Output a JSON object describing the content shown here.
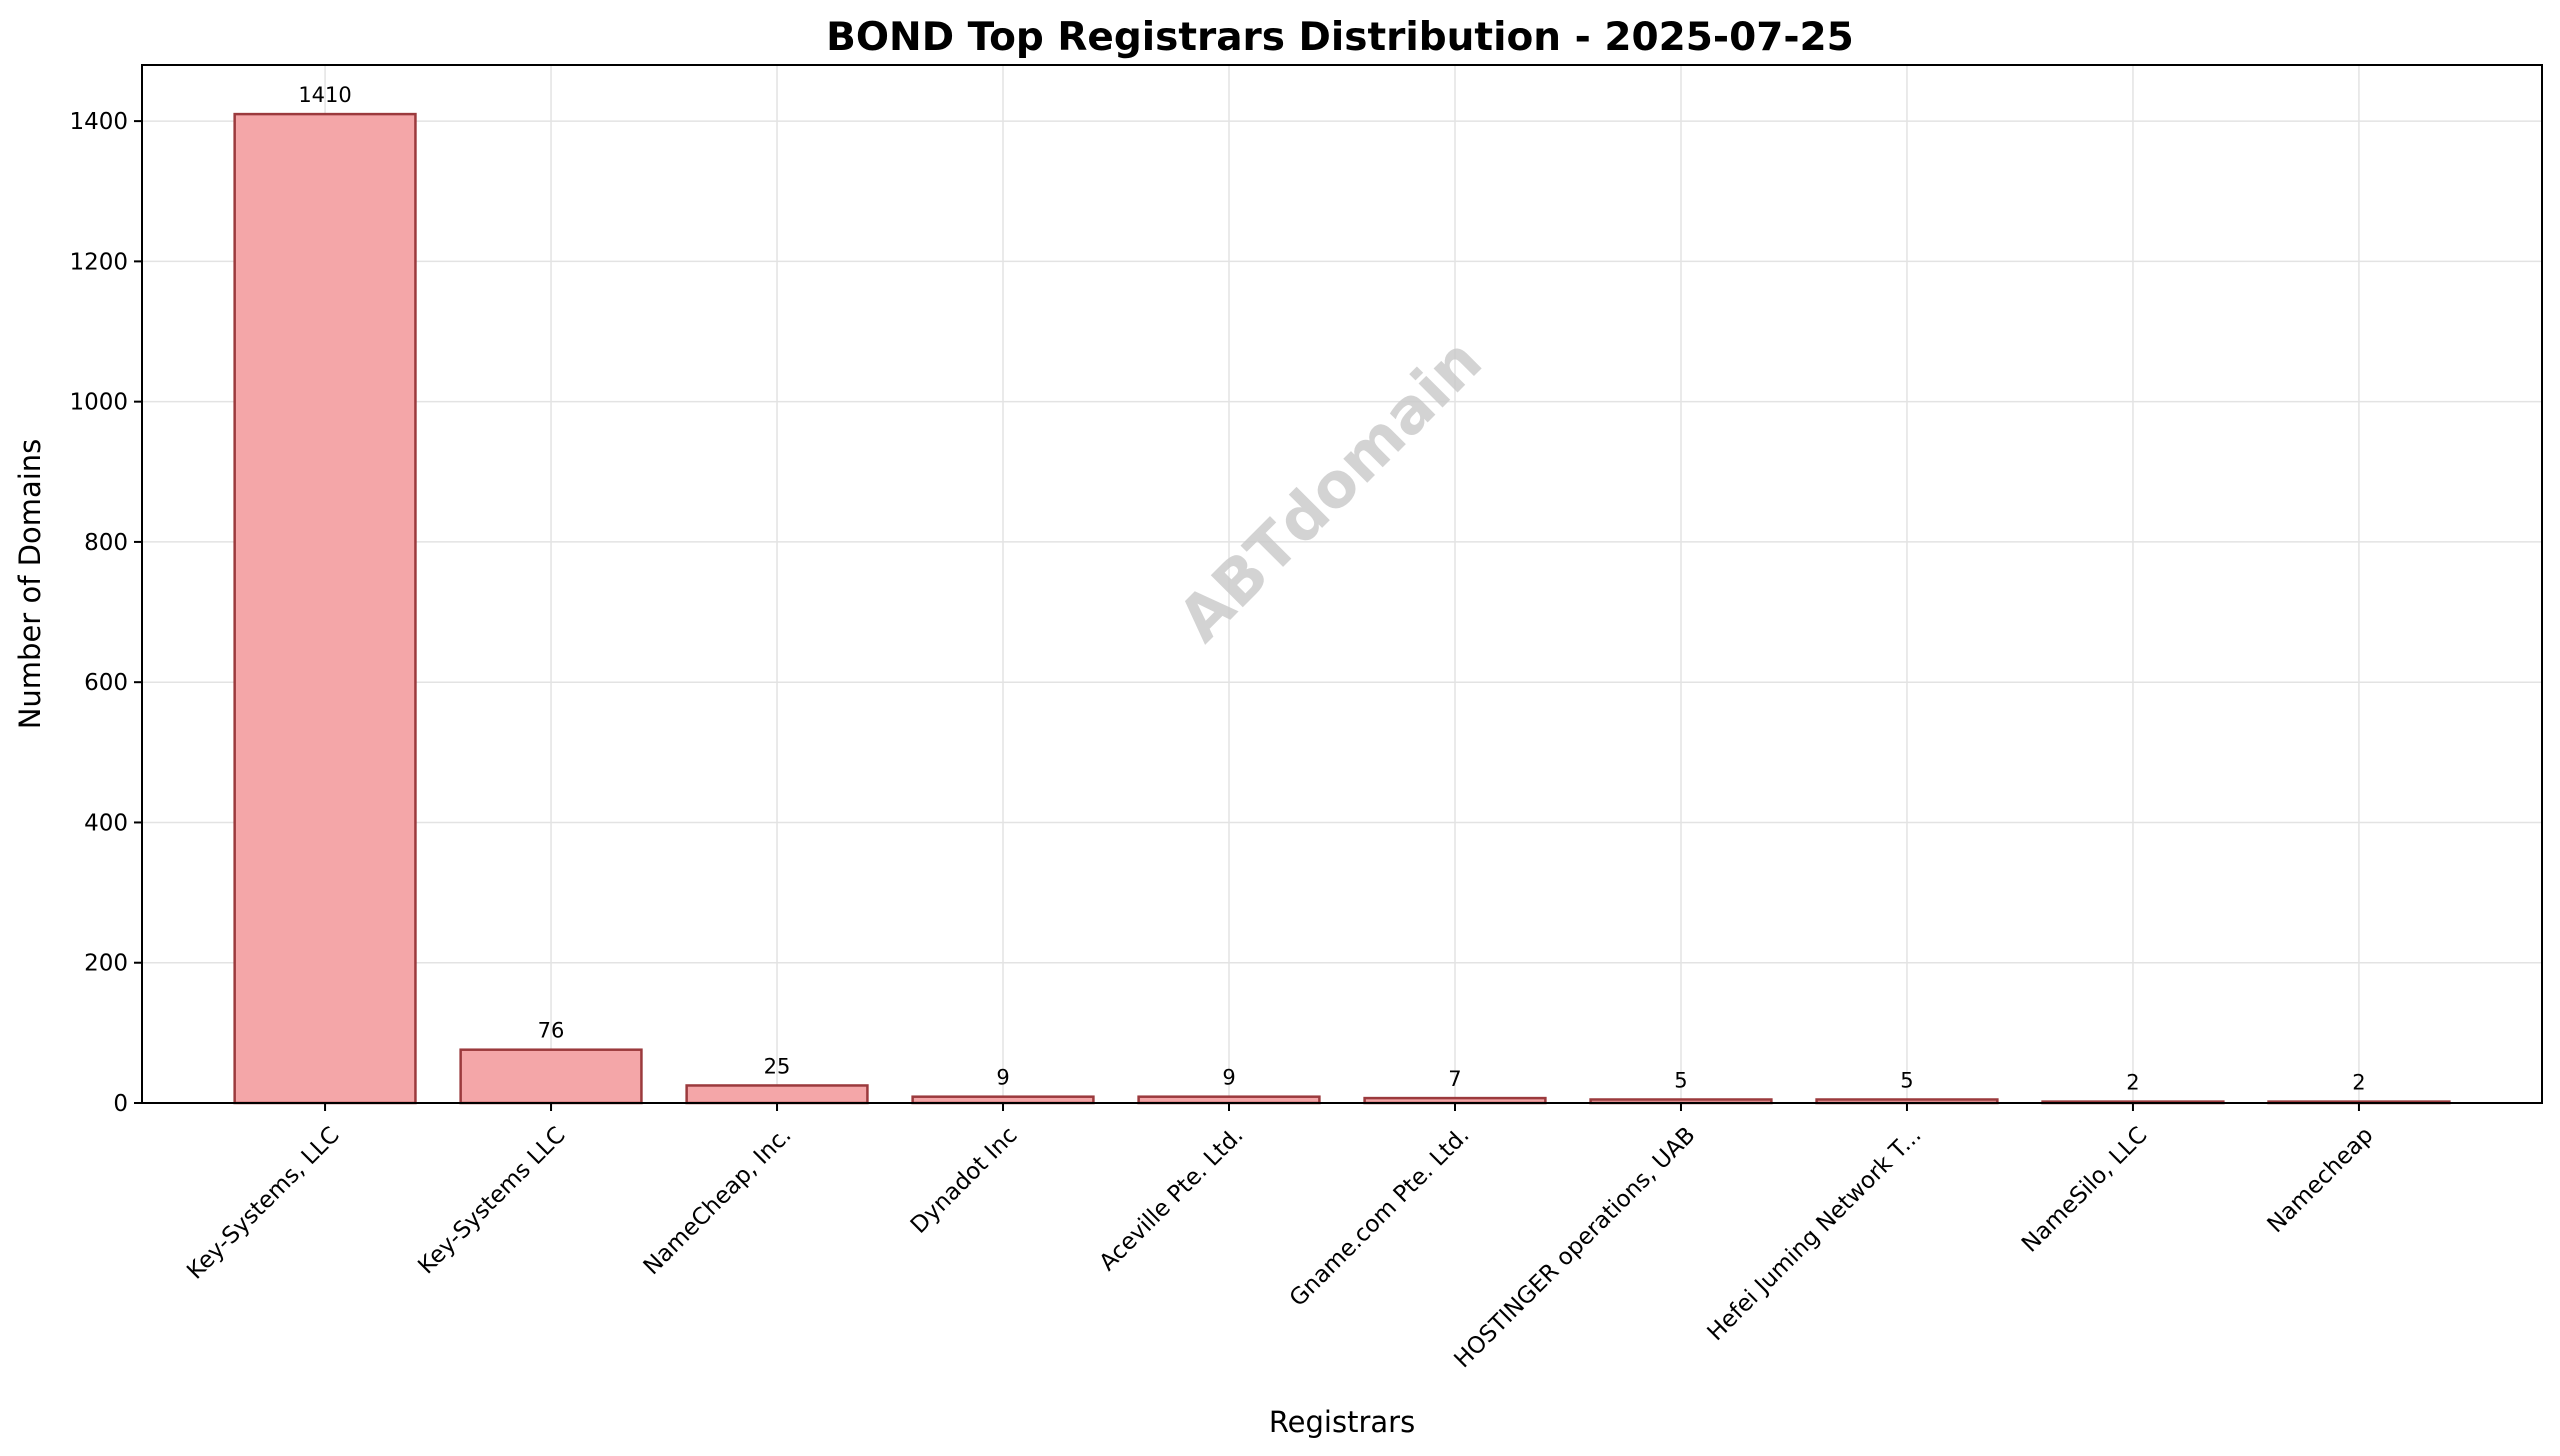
{
  "chart_data": {
    "type": "bar",
    "title": "BOND Top Registrars Distribution - 2025-07-25",
    "xlabel": "Registrars",
    "ylabel": "Number of Domains",
    "ylim": [
      0,
      1480
    ],
    "yticks": [
      0,
      200,
      400,
      600,
      800,
      1000,
      1200,
      1400
    ],
    "grid": true,
    "watermark": "ABTdomain",
    "categories": [
      "Key-Systems, LLC",
      "Key-Systems LLC",
      "NameCheap, Inc.",
      "Dynadot Inc",
      "Aceville Pte. Ltd.",
      "Gname.com Pte. Ltd.",
      "HOSTINGER operations, UAB",
      "Hefei Juming Network T...",
      "NameSilo, LLC",
      "Namecheap"
    ],
    "values": [
      1410,
      76,
      25,
      9,
      9,
      7,
      5,
      5,
      2,
      2
    ],
    "colors": {
      "bar_fill": "#f4a6a8",
      "bar_edge": "#9b3a3d",
      "grid": "#e3e3e3"
    }
  }
}
